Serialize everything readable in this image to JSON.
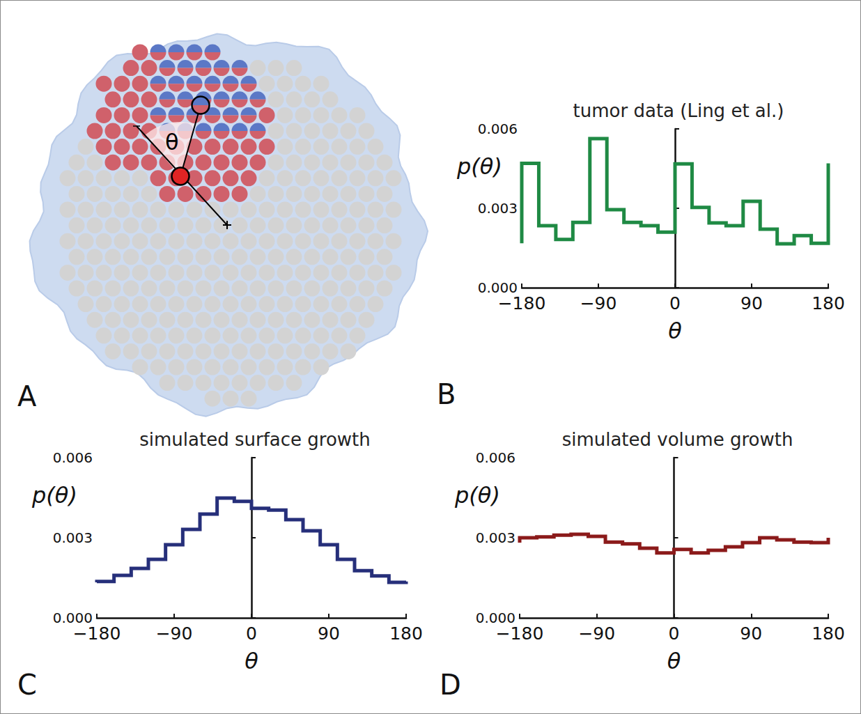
{
  "figure_a": {
    "panel_label": "A",
    "angle_label": "θ"
  },
  "chart_data": [
    {
      "type": "histogram",
      "panel_label": "B",
      "title": "tumor data (Ling et al.)",
      "x_label": "θ",
      "y_label": "p(θ)",
      "color": "#1f8a44",
      "bins": [
        -180,
        -160,
        -140,
        -120,
        -100,
        -80,
        -60,
        -40,
        -20,
        0,
        20,
        40,
        60,
        80,
        100,
        120,
        140,
        160,
        180
      ],
      "values": [
        0.0047,
        0.00234,
        0.00182,
        0.00247,
        0.00563,
        0.00295,
        0.00247,
        0.00234,
        0.0021,
        0.00468,
        0.00303,
        0.00245,
        0.00234,
        0.00326,
        0.00221,
        0.00166,
        0.00197,
        0.00168
      ],
      "xlim": [
        -180,
        180
      ],
      "xticks": [
        {
          "value": -180,
          "label": "−180"
        },
        {
          "value": -90,
          "label": "−90"
        },
        0,
        90,
        180
      ],
      "ylim": [
        0,
        0.006
      ],
      "yticks": [
        {
          "value": 0,
          "label": "0.000"
        },
        0.003,
        0.006
      ],
      "grid": false
    },
    {
      "type": "histogram",
      "panel_label": "C",
      "title": "simulated surface growth",
      "x_label": "θ",
      "y_label": "p(θ)",
      "color": "#262f7a",
      "bins": [
        -180,
        -160,
        -140,
        -120,
        -100,
        -80,
        -60,
        -40,
        -20,
        0,
        20,
        40,
        60,
        80,
        100,
        120,
        140,
        160,
        180
      ],
      "values": [
        0.00136,
        0.00159,
        0.00185,
        0.00219,
        0.00274,
        0.00331,
        0.00389,
        0.00449,
        0.00436,
        0.0041,
        0.00404,
        0.00368,
        0.00326,
        0.00274,
        0.00219,
        0.00177,
        0.00157,
        0.00133
      ],
      "xlim": [
        -180,
        180
      ],
      "xticks": [
        {
          "value": -180,
          "label": "−180"
        },
        {
          "value": -90,
          "label": "−90"
        },
        0,
        90,
        180
      ],
      "ylim": [
        0,
        0.006
      ],
      "yticks": [
        {
          "value": 0,
          "label": "0.000"
        },
        0.003,
        0.006
      ],
      "grid": false
    },
    {
      "type": "histogram",
      "panel_label": "D",
      "title": "simulated volume growth",
      "x_label": "θ",
      "y_label": "p(θ)",
      "color": "#8b1a1a",
      "bins": [
        -180,
        -160,
        -140,
        -120,
        -100,
        -80,
        -60,
        -40,
        -20,
        0,
        20,
        40,
        60,
        80,
        100,
        120,
        140,
        160,
        180
      ],
      "values": [
        0.003,
        0.00303,
        0.0031,
        0.00313,
        0.00305,
        0.00284,
        0.00277,
        0.00261,
        0.00243,
        0.00256,
        0.00243,
        0.00253,
        0.00266,
        0.00282,
        0.003,
        0.00292,
        0.00284,
        0.00282
      ],
      "xlim": [
        -180,
        180
      ],
      "xticks": [
        {
          "value": -180,
          "label": "−180"
        },
        {
          "value": -90,
          "label": "−90"
        },
        0,
        90,
        180
      ],
      "ylim": [
        0,
        0.006
      ],
      "yticks": [
        {
          "value": 0,
          "label": "0.000"
        },
        0.003,
        0.006
      ],
      "grid": false
    }
  ]
}
